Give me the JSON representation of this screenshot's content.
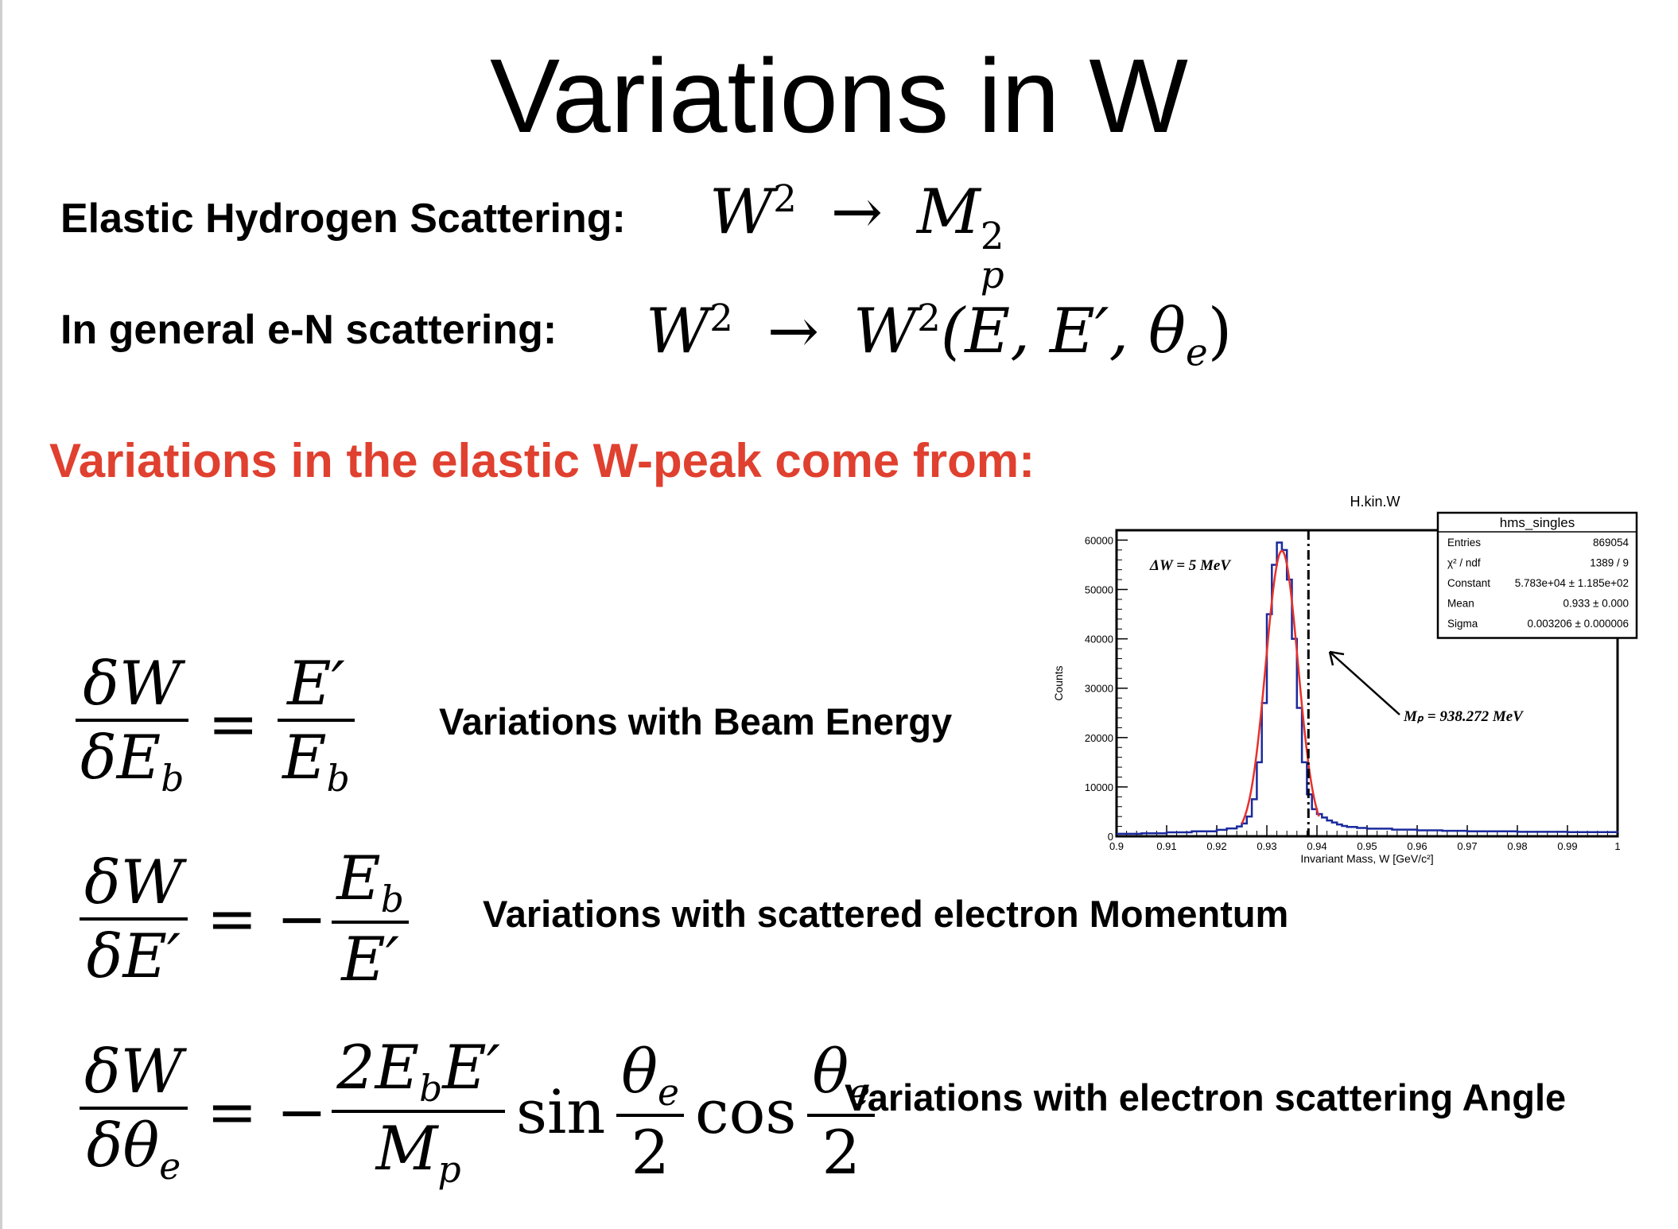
{
  "slide": {
    "title": "Variations in W",
    "elastic_label": "Elastic Hydrogen Scattering:",
    "general_label": "In general e-N scattering:",
    "red_heading": "Variations in the elastic W-peak  come from:",
    "accent_color": "#e0402f"
  },
  "formulas": {
    "elastic": {
      "lhs": "W",
      "lhs_sup": "2",
      "arrow": "→",
      "rhs": "M",
      "rhs_sup": "2",
      "rhs_sub": "p"
    },
    "general": {
      "lhs": "W",
      "lhs_sup": "2",
      "arrow": "→",
      "rhs": "W",
      "rhs_sup": "2",
      "args": "(E, E′, θ",
      "args_sub": "e",
      "close": ")"
    },
    "beam": {
      "num": "δW",
      "den": "δE",
      "den_sub": "b",
      "eq": "=",
      "rnum": "E′",
      "rden": "E",
      "rden_sub": "b",
      "desc": "Variations with Beam Energy"
    },
    "momentum": {
      "num": "δW",
      "den": "δE′",
      "eq": "=",
      "sign": "−",
      "rnum": "E",
      "rnum_sub": "b",
      "rden": "E′",
      "desc": "Variations with scattered electron Momentum"
    },
    "angle": {
      "num": "δW",
      "den": "δθ",
      "den_sub": "e",
      "eq": "=",
      "sign": "−",
      "rnum_a": "2E",
      "rnum_sub": "b",
      "rnum_b": "E′",
      "rden": "M",
      "rden_sub": "p",
      "sin": "sin",
      "cos": "cos",
      "theta": "θ",
      "theta_sub": "e",
      "two": "2",
      "desc": "Variations with electron scattering Angle"
    }
  },
  "chart_data": {
    "type": "histogram",
    "title": "H.kin.W",
    "xlabel": "Invariant Mass, W [GeV/c²]",
    "ylabel": "Counts",
    "xlim": [
      0.9,
      1.0
    ],
    "ylim": [
      0,
      60000
    ],
    "x_ticks": [
      "0.9",
      "0.91",
      "0.92",
      "0.93",
      "0.94",
      "0.95",
      "0.96",
      "0.97",
      "0.98",
      "0.99",
      "1"
    ],
    "y_ticks": [
      "0",
      "10000",
      "20000",
      "30000",
      "40000",
      "50000",
      "60000"
    ],
    "annotation_dw": "ΔW = 5 MeV",
    "annotation_mp": "Mₚ = 938.272 MeV",
    "dashed_line_x": 0.9383,
    "stats_box": {
      "name": "hms_singles",
      "rows": [
        [
          "Entries",
          "869054"
        ],
        [
          "χ² / ndf",
          "1389 / 9"
        ],
        [
          "Constant",
          "5.783e+04 ± 1.185e+02"
        ],
        [
          "Mean",
          "0.933 ± 0.000"
        ],
        [
          "Sigma",
          "0.003206 ± 0.000006"
        ]
      ]
    },
    "fit": {
      "type": "gaussian",
      "constant": 57830,
      "mean": 0.933,
      "sigma": 0.003206,
      "color": "#e8312a"
    },
    "hist_color": "#1a2a9c",
    "bin_width": 0.001,
    "bins_x": [
      0.9,
      0.905,
      0.91,
      0.915,
      0.92,
      0.922,
      0.924,
      0.925,
      0.926,
      0.927,
      0.928,
      0.929,
      0.93,
      0.931,
      0.932,
      0.933,
      0.934,
      0.935,
      0.936,
      0.937,
      0.938,
      0.939,
      0.94,
      0.941,
      0.942,
      0.943,
      0.944,
      0.945,
      0.946,
      0.948,
      0.95,
      0.955,
      0.96,
      0.965,
      0.97,
      0.98,
      0.99,
      1.0
    ],
    "bins_y": [
      500,
      600,
      800,
      1000,
      1300,
      1600,
      2000,
      2600,
      4000,
      7500,
      15000,
      27000,
      45000,
      55000,
      59500,
      58000,
      52000,
      40000,
      26000,
      15000,
      8500,
      5500,
      4500,
      3800,
      3200,
      2800,
      2400,
      2100,
      1900,
      1700,
      1550,
      1350,
      1200,
      1100,
      1000,
      900,
      850,
      800
    ]
  }
}
